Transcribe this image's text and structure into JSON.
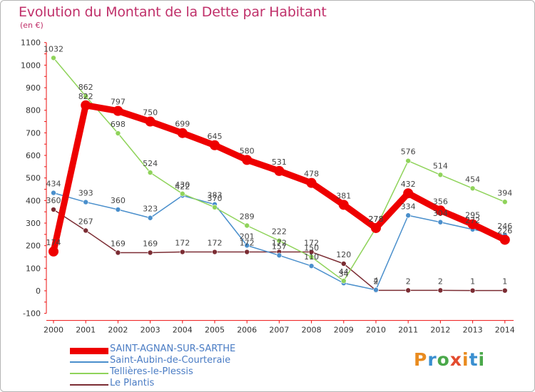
{
  "header": {
    "title": "Evolution du Montant de la Dette par Habitant",
    "unit": "(en €)"
  },
  "logo": {
    "text": "Proxiti",
    "colors": [
      "#e98b1f",
      "#3a8fd0",
      "#4aa84a",
      "#e34b2e"
    ]
  },
  "chart_data": {
    "type": "line",
    "title": "Evolution du Montant de la Dette par Habitant",
    "ylabel": "(en €)",
    "x": [
      2000,
      2001,
      2002,
      2003,
      2004,
      2005,
      2006,
      2007,
      2008,
      2009,
      2010,
      2011,
      2012,
      2013,
      2014
    ],
    "ylim": [
      -100,
      1100
    ],
    "yticks": [
      -100,
      0,
      100,
      200,
      300,
      400,
      500,
      600,
      700,
      800,
      900,
      1000,
      1100
    ],
    "grid": false,
    "legend_position": "bottom-left",
    "series": [
      {
        "name": "Le Plantis",
        "color": "#7b2c33",
        "values": [
          360,
          267,
          169,
          169,
          172,
          172,
          172,
          172,
          172,
          120,
          2,
          2,
          2,
          1,
          1
        ]
      },
      {
        "name": "Saint-Aubin-de-Courteraie",
        "color": "#4a8fcc",
        "values": [
          434,
          393,
          360,
          323,
          422,
          383,
          201,
          157,
          110,
          34,
          4,
          334,
          304,
          272,
          246
        ]
      },
      {
        "name": "Tellières-le-Plessis",
        "color": "#8fd35a",
        "values": [
          1032,
          862,
          698,
          524,
          430,
          370,
          289,
          222,
          150,
          44,
          278,
          576,
          514,
          454,
          394
        ]
      },
      {
        "name": "SAINT-AGNAN-SUR-SARTHE",
        "color": "#ee0000",
        "values": [
          174,
          822,
          797,
          750,
          699,
          645,
          580,
          531,
          478,
          381,
          278,
          432,
          356,
          295,
          226
        ]
      }
    ],
    "legend_order": [
      "SAINT-AGNAN-SUR-SARTHE",
      "Saint-Aubin-de-Courteraie",
      "Tellières-le-Plessis",
      "Le Plantis"
    ],
    "data_labels": [
      {
        "series": "Le Plantis",
        "values": [
          "360",
          "267",
          "169",
          "169",
          "172",
          "172",
          "172",
          "172",
          "172",
          "120",
          "2",
          "2",
          "2",
          "1",
          "1"
        ]
      },
      {
        "series": "Saint-Aubin-de-Courteraie",
        "values": [
          "434",
          "393",
          "360",
          "323",
          "422",
          "383",
          "201",
          "157",
          "110",
          "34",
          "4",
          "334",
          "304",
          "272",
          "246"
        ]
      },
      {
        "series": "Tellières-le-Plessis",
        "values": [
          "1032",
          "862",
          "698",
          "524",
          "430",
          "370",
          "289",
          "222",
          "150",
          "44",
          "278",
          "576",
          "514",
          "454",
          "394"
        ]
      },
      {
        "series": "SAINT-AGNAN-SUR-SARTHE",
        "values": [
          "174",
          "822",
          "797",
          "750",
          "699",
          "645",
          "580",
          "531",
          "478",
          "381",
          "278",
          "432",
          "356",
          "295",
          "226"
        ]
      }
    ]
  }
}
